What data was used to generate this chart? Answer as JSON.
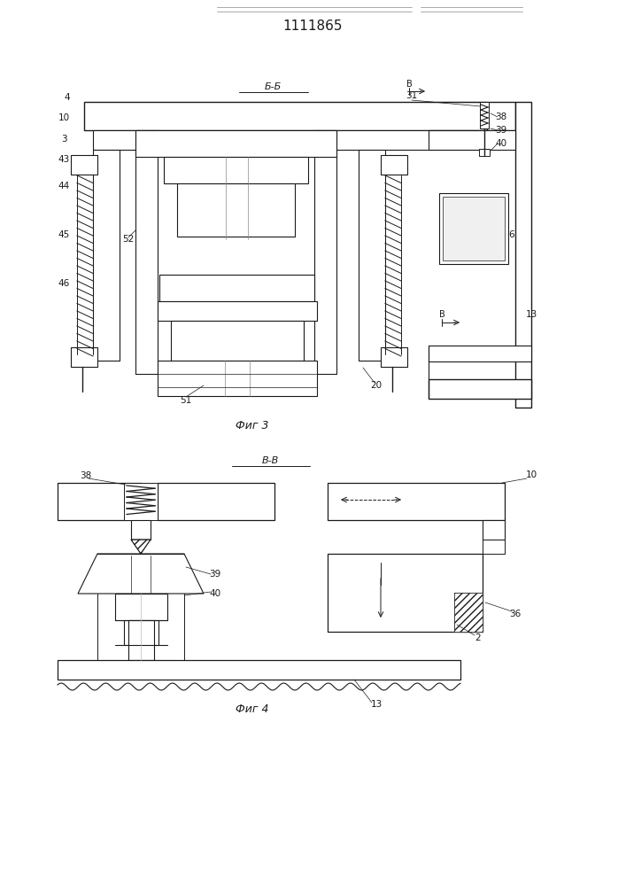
{
  "title": "1111865",
  "fig3_label": "Фиг 3",
  "fig4_label": "Фиг 4",
  "section_bb": "Б-Б",
  "section_vv": "В-В",
  "bg_color": "#ffffff",
  "lc": "#1a1a1a"
}
